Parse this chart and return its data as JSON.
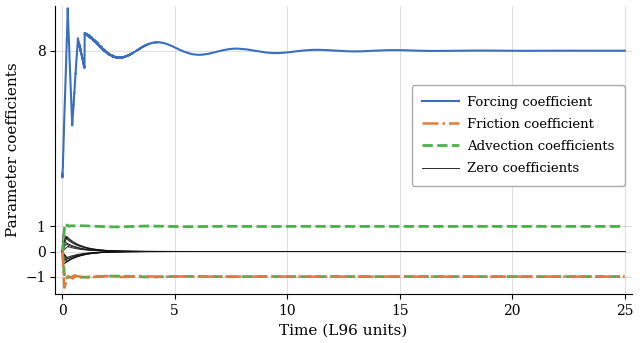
{
  "title": "",
  "xlabel": "Time (L96 units)",
  "ylabel": "Parameter coefficients",
  "xlim": [
    -0.3,
    25.3
  ],
  "ylim": [
    -1.7,
    9.8
  ],
  "yticks": [
    -1,
    0,
    1,
    8
  ],
  "xticks": [
    0,
    5,
    10,
    15,
    20,
    25
  ],
  "forcing_color": "#3A6FBF",
  "friction_color": "#E07B39",
  "advection_color": "#4DAF4A",
  "zero_color": "#111111",
  "legend_labels": [
    "Forcing coefficient",
    "Friction coefficient",
    "Advection coefficients",
    "Zero coefficients"
  ],
  "figsize": [
    6.4,
    3.43
  ],
  "dpi": 100,
  "num_zero_lines": 12
}
